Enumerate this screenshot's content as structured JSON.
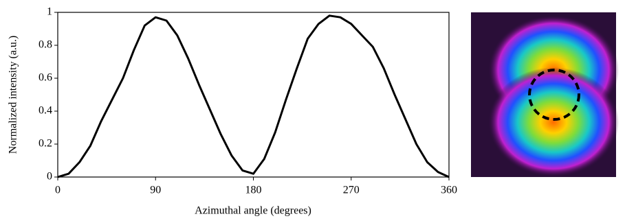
{
  "chart_data": {
    "type": "line",
    "x_label": "Azimuthal angle (degrees)",
    "y_label": "Normalized intensity (a.u.)",
    "x": [
      0,
      10,
      20,
      30,
      40,
      50,
      60,
      70,
      80,
      90,
      100,
      110,
      120,
      130,
      140,
      150,
      160,
      170,
      180,
      190,
      200,
      210,
      220,
      230,
      240,
      250,
      260,
      270,
      280,
      290,
      300,
      310,
      320,
      330,
      340,
      350,
      360
    ],
    "series": [
      {
        "color": "#000000",
        "values": [
          0,
          0.02,
          0.09,
          0.19,
          0.34,
          0.47,
          0.6,
          0.77,
          0.92,
          0.97,
          0.95,
          0.86,
          0.72,
          0.56,
          0.41,
          0.26,
          0.13,
          0.04,
          0.02,
          0.11,
          0.27,
          0.47,
          0.66,
          0.84,
          0.93,
          0.98,
          0.97,
          0.93,
          0.86,
          0.79,
          0.66,
          0.5,
          0.35,
          0.2,
          0.09,
          0.03,
          0
        ]
      }
    ],
    "xlim": [
      0,
      360
    ],
    "xticks": [
      0,
      90,
      180,
      270,
      360
    ],
    "ylim": [
      0,
      1
    ],
    "yticks": [
      0,
      0.2,
      0.4,
      0.6,
      0.8,
      1
    ],
    "grid": false
  }
}
